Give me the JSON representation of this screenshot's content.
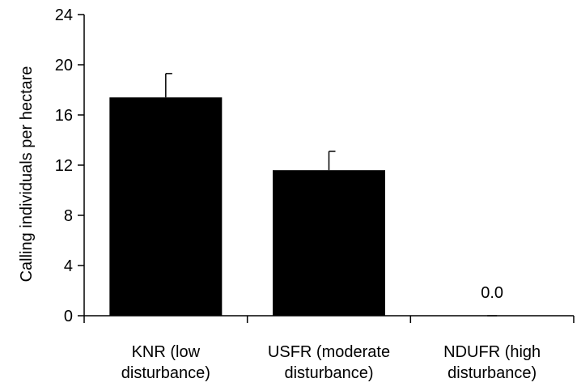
{
  "chart_data": {
    "type": "bar",
    "title": "",
    "xlabel": "",
    "ylabel": "Calling individuals per hectare",
    "categories": [
      [
        "KNR (low",
        "disturbance)"
      ],
      [
        "USFR (moderate",
        "disturbance)"
      ],
      [
        "NDUFR (high",
        "disturbance)"
      ]
    ],
    "values": [
      17.4,
      11.6,
      0.0
    ],
    "error_upper": [
      1.9,
      1.5,
      0.0
    ],
    "data_labels": [
      "",
      "",
      "0.0"
    ],
    "ylim": [
      0,
      24
    ],
    "yticks": [
      0,
      4,
      8,
      12,
      16,
      20,
      24
    ],
    "grid": false,
    "legend": "none",
    "colors": {
      "bar": "#000000",
      "axis": "#000000",
      "background": "#ffffff"
    }
  }
}
